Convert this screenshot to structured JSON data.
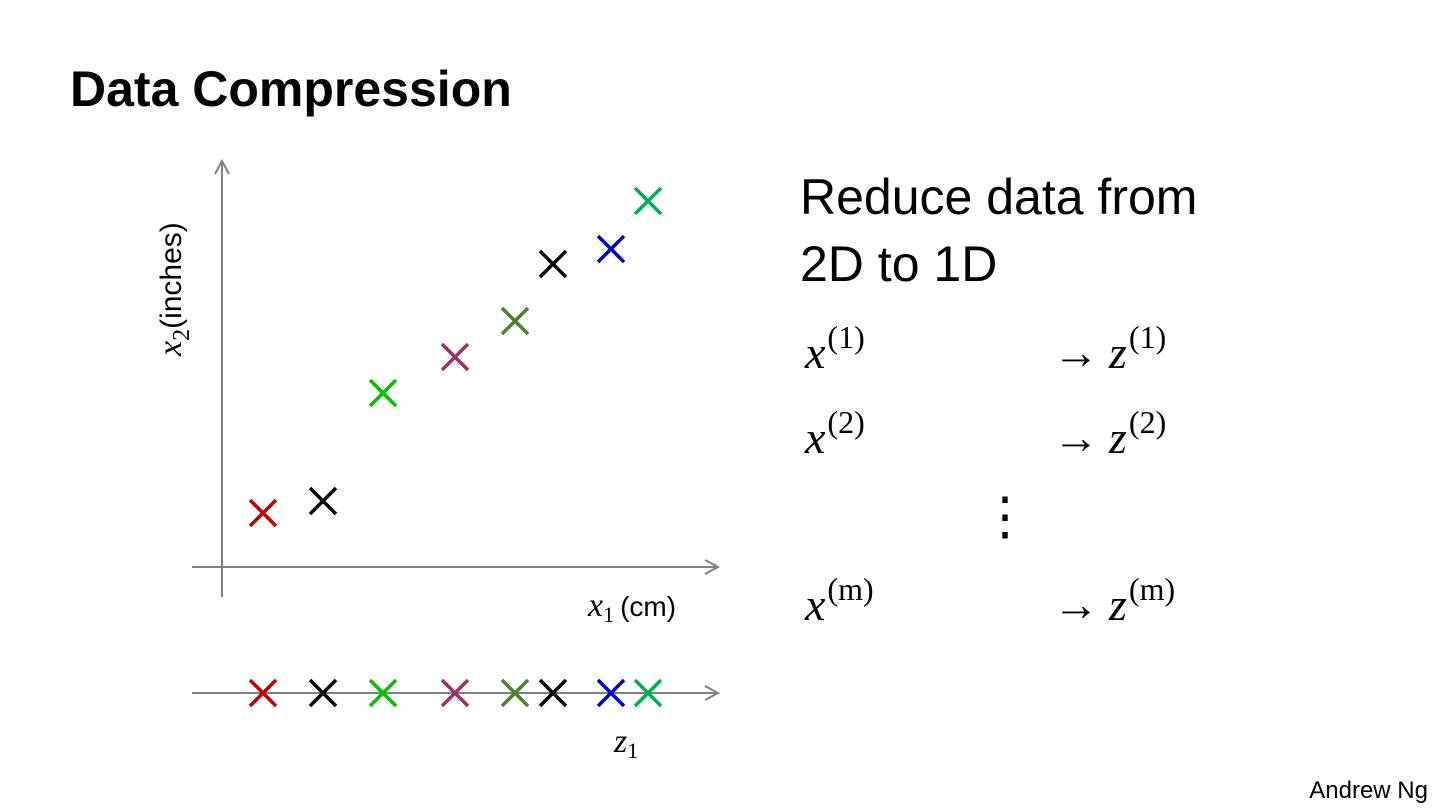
{
  "title": "Data Compression",
  "plot": {
    "y_label": {
      "symbol": "x",
      "subscript": "2",
      "unit": "(inches)"
    },
    "x_label": {
      "symbol": "x",
      "subscript": "1",
      "unit": "(cm)"
    },
    "projection_label": {
      "symbol": "z",
      "subscript": "1"
    }
  },
  "description": [
    "Reduce data from",
    "2D to 1D"
  ],
  "mappings": [
    {
      "from": "x",
      "from_index": "(1)",
      "arrow": "→",
      "to": "z",
      "to_index": "(1)"
    },
    {
      "from": "x",
      "from_index": "(2)",
      "arrow": "→",
      "to": "z",
      "to_index": "(2)"
    },
    {
      "from": "x",
      "from_index": "(m)",
      "arrow": "→",
      "to": "z",
      "to_index": "(m)"
    }
  ],
  "ellipsis": "⋮",
  "footer": "Andrew Ng"
}
